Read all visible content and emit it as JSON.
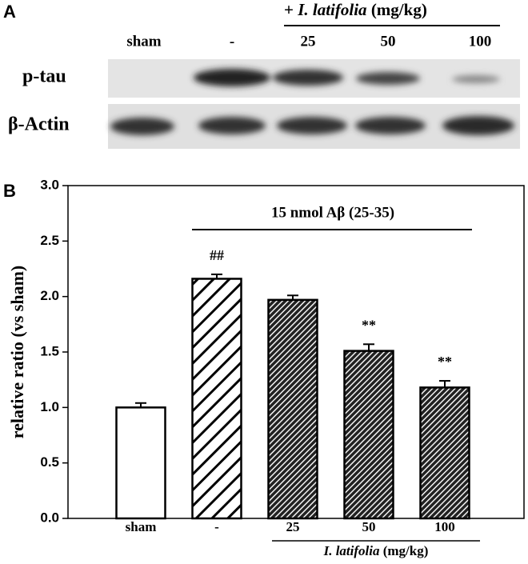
{
  "blot": {
    "panel_label": "A",
    "treatment_prefix": "+",
    "treatment_italic": "I. latifolia",
    "treatment_unit": "(mg/kg)",
    "lanes": [
      "sham",
      "-",
      "25",
      "50",
      "100"
    ],
    "rows": [
      "p-tau",
      "β-Actin"
    ]
  },
  "chart_data": {
    "type": "bar",
    "panel_label": "B",
    "ylabel": "relative ratio (vs sham)",
    "categories": [
      "sham",
      "-",
      "25",
      "50",
      "100"
    ],
    "values": [
      1.0,
      2.16,
      1.97,
      1.51,
      1.18
    ],
    "errors": [
      0.04,
      0.04,
      0.04,
      0.06,
      0.06
    ],
    "bar_patterns": [
      "none",
      "sparse",
      "dense",
      "dense",
      "dense"
    ],
    "bar_annotations": [
      null,
      "##",
      null,
      "**",
      "**"
    ],
    "treatment_label": "15 nmol Aβ (25-35)",
    "group_italic": "I. latifolia",
    "group_unit": "(mg/kg)",
    "ylim": [
      0,
      3
    ],
    "yticks": [
      {
        "value": 0,
        "label": "0.0"
      },
      {
        "value": 0.5,
        "label": "0.5"
      },
      {
        "value": 1,
        "label": "1.0"
      },
      {
        "value": 1.5,
        "label": "1.5"
      },
      {
        "value": 2,
        "label": "2.0"
      },
      {
        "value": 2.5,
        "label": "2.5"
      },
      {
        "value": 3,
        "label": "3.0"
      }
    ],
    "color": "#000000"
  }
}
